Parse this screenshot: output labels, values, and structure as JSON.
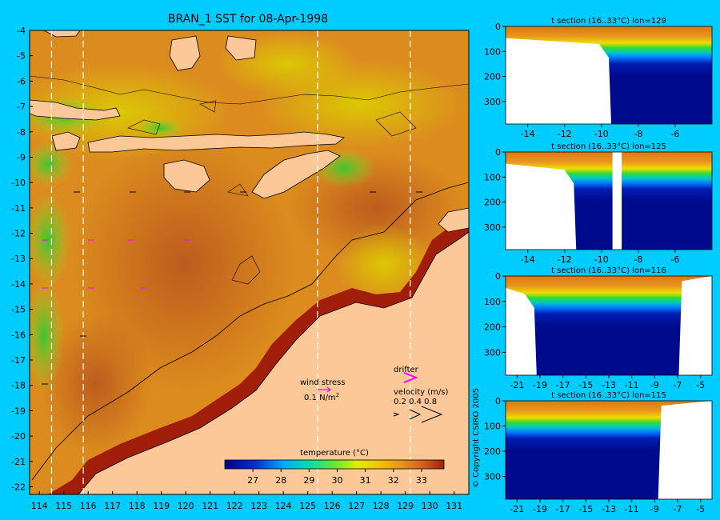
{
  "main_map": {
    "title": "BRAN_1 SST for 08-Apr-1998",
    "x_ticks": [
      114,
      115,
      116,
      117,
      118,
      119,
      120,
      121,
      122,
      123,
      124,
      125,
      126,
      127,
      128,
      129,
      130,
      131
    ],
    "y_ticks": [
      -4,
      -5,
      -6,
      -7,
      -8,
      -9,
      -10,
      -11,
      -12,
      -13,
      -14,
      -15,
      -16,
      -17,
      -18,
      -19,
      -20,
      -21,
      -22
    ],
    "xlim": [
      113.6,
      131.6
    ],
    "ylim": [
      -22.3,
      -4.0
    ],
    "section_lines_lon": [
      114.5,
      115.8,
      125.4,
      129.2
    ],
    "wind_stress_label": "wind stress",
    "wind_stress_scale": "0.1 N/m",
    "wind_stress_sup": "2",
    "drifter_label": "drifter",
    "velocity_label": "velocity (m/s)",
    "velocity_scale": "0.2 0.4 0.8",
    "colorbar_title": "temperature (°C)",
    "colorbar_ticks": [
      27,
      28,
      29,
      30,
      31,
      32,
      33
    ],
    "colorbar_range": [
      26,
      33.8
    ],
    "colors": {
      "land": "#fcc898",
      "warm": "#c8641e",
      "hot": "#a01e0a",
      "green": "#32c832",
      "ocean_bg": "#00ccff"
    }
  },
  "copyright": "© Copyright CSIRO 2005",
  "chart_data": [
    {
      "type": "heatmap",
      "title": "BRAN_1 SST for 08-Apr-1998",
      "xlabel": "",
      "ylabel": "",
      "xlim": [
        113.6,
        131.6
      ],
      "ylim": [
        -22.3,
        -4.0
      ],
      "colorbar_title": "temperature (°C)",
      "colorbar_ticks": [
        27,
        28,
        29,
        30,
        31,
        32,
        33
      ]
    },
    {
      "type": "heatmap",
      "title": "t section (16..33°C) lon=129",
      "x_ticks": [
        -14,
        -12,
        -10,
        -8,
        -6
      ],
      "xlim": [
        -15.2,
        -4.0
      ],
      "y_ticks": [
        0,
        100,
        200,
        300
      ],
      "ylim": [
        390,
        0
      ],
      "thermocline_depth": [
        null,
        null,
        null,
        null,
        null,
        80,
        70,
        72,
        68,
        66,
        70,
        68
      ],
      "land_until_lat": -9.6
    },
    {
      "type": "heatmap",
      "title": "t section (16..33°C) lon=125",
      "x_ticks": [
        -14,
        -12,
        -10,
        -8,
        -6
      ],
      "xlim": [
        -15.2,
        -4.0
      ],
      "y_ticks": [
        0,
        100,
        200,
        300
      ],
      "ylim": [
        390,
        0
      ],
      "land_until_lat": -11.5,
      "land_gap_lat": [
        -9.4,
        -8.9
      ]
    },
    {
      "type": "heatmap",
      "title": "t section (16..33°C) lon=116",
      "x_ticks": [
        -21,
        -19,
        -17,
        -15,
        -13,
        -11,
        -9,
        -7,
        -5
      ],
      "xlim": [
        -22.0,
        -4.0
      ],
      "y_ticks": [
        0,
        100,
        200,
        300
      ],
      "ylim": [
        390,
        0
      ],
      "land_until_lat": -19.5,
      "land_from_lat": -6.9
    },
    {
      "type": "heatmap",
      "title": "t section (16..33°C) lon=115",
      "x_ticks": [
        -21,
        -19,
        -17,
        -15,
        -13,
        -11,
        -9,
        -7,
        -5
      ],
      "xlim": [
        -22.0,
        -4.0
      ],
      "y_ticks": [
        0,
        100,
        200,
        300
      ],
      "ylim": [
        390,
        0
      ],
      "land_from_lat": -8.7
    }
  ]
}
